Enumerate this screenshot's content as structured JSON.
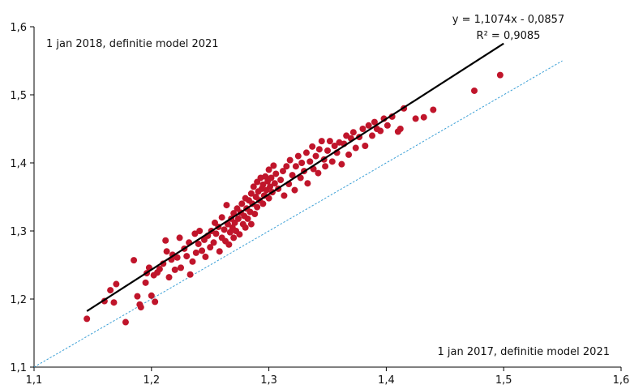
{
  "chart_data": {
    "type": "scatter",
    "title": "",
    "xlabel": "",
    "ylabel": "",
    "xlim": [
      1.1,
      1.6
    ],
    "ylim": [
      1.1,
      1.6
    ],
    "xticks": [
      "1,1",
      "1,2",
      "1,3",
      "1,4",
      "1,5",
      "1,6"
    ],
    "yticks": [
      "1,1",
      "1,2",
      "1,3",
      "1,4",
      "1,5",
      "1,6"
    ],
    "grid": false,
    "legend": "none",
    "annotations": {
      "y_axis_label": "1 jan 2018, definitie model 2021",
      "x_axis_label": "1 jan 2017, definitie model 2021",
      "equation": "y = 1,1074x - 0,0857",
      "r_squared": "R² = 0,9085"
    },
    "trendline": {
      "slope": 1.1074,
      "intercept": -0.0857,
      "x_range": [
        1.145,
        1.5
      ]
    },
    "reference_line": {
      "slope": 1,
      "intercept": 0,
      "x_range": [
        1.1,
        1.55
      ]
    },
    "point_color": "#c0152b",
    "trendline_color": "#000000",
    "reference_color": "#3a9fd6",
    "series": [
      {
        "points": [
          [
            1.145,
            1.171
          ],
          [
            1.16,
            1.197
          ],
          [
            1.165,
            1.213
          ],
          [
            1.168,
            1.195
          ],
          [
            1.17,
            1.222
          ],
          [
            1.178,
            1.166
          ],
          [
            1.185,
            1.257
          ],
          [
            1.188,
            1.204
          ],
          [
            1.19,
            1.192
          ],
          [
            1.191,
            1.188
          ],
          [
            1.195,
            1.224
          ],
          [
            1.196,
            1.238
          ],
          [
            1.198,
            1.246
          ],
          [
            1.2,
            1.205
          ],
          [
            1.202,
            1.235
          ],
          [
            1.203,
            1.196
          ],
          [
            1.205,
            1.239
          ],
          [
            1.207,
            1.244
          ],
          [
            1.21,
            1.252
          ],
          [
            1.212,
            1.286
          ],
          [
            1.213,
            1.27
          ],
          [
            1.215,
            1.232
          ],
          [
            1.217,
            1.258
          ],
          [
            1.218,
            1.265
          ],
          [
            1.22,
            1.243
          ],
          [
            1.222,
            1.261
          ],
          [
            1.224,
            1.29
          ],
          [
            1.225,
            1.246
          ],
          [
            1.228,
            1.274
          ],
          [
            1.23,
            1.263
          ],
          [
            1.232,
            1.283
          ],
          [
            1.233,
            1.236
          ],
          [
            1.235,
            1.255
          ],
          [
            1.237,
            1.296
          ],
          [
            1.238,
            1.268
          ],
          [
            1.24,
            1.281
          ],
          [
            1.241,
            1.3
          ],
          [
            1.243,
            1.271
          ],
          [
            1.245,
            1.287
          ],
          [
            1.246,
            1.262
          ],
          [
            1.248,
            1.293
          ],
          [
            1.25,
            1.276
          ],
          [
            1.251,
            1.3
          ],
          [
            1.253,
            1.283
          ],
          [
            1.254,
            1.312
          ],
          [
            1.255,
            1.296
          ],
          [
            1.257,
            1.306
          ],
          [
            1.258,
            1.27
          ],
          [
            1.26,
            1.29
          ],
          [
            1.26,
            1.32
          ],
          [
            1.262,
            1.302
          ],
          [
            1.263,
            1.285
          ],
          [
            1.264,
            1.338
          ],
          [
            1.265,
            1.31
          ],
          [
            1.266,
            1.28
          ],
          [
            1.267,
            1.298
          ],
          [
            1.268,
            1.318
          ],
          [
            1.269,
            1.305
          ],
          [
            1.27,
            1.29
          ],
          [
            1.27,
            1.326
          ],
          [
            1.271,
            1.312
          ],
          [
            1.272,
            1.3
          ],
          [
            1.273,
            1.333
          ],
          [
            1.274,
            1.318
          ],
          [
            1.275,
            1.295
          ],
          [
            1.276,
            1.327
          ],
          [
            1.277,
            1.34
          ],
          [
            1.278,
            1.31
          ],
          [
            1.279,
            1.322
          ],
          [
            1.28,
            1.305
          ],
          [
            1.28,
            1.348
          ],
          [
            1.281,
            1.333
          ],
          [
            1.282,
            1.318
          ],
          [
            1.283,
            1.345
          ],
          [
            1.284,
            1.328
          ],
          [
            1.285,
            1.31
          ],
          [
            1.285,
            1.355
          ],
          [
            1.286,
            1.34
          ],
          [
            1.287,
            1.365
          ],
          [
            1.288,
            1.325
          ],
          [
            1.289,
            1.35
          ],
          [
            1.29,
            1.335
          ],
          [
            1.29,
            1.372
          ],
          [
            1.291,
            1.358
          ],
          [
            1.292,
            1.345
          ],
          [
            1.293,
            1.378
          ],
          [
            1.294,
            1.362
          ],
          [
            1.295,
            1.34
          ],
          [
            1.295,
            1.368
          ],
          [
            1.296,
            1.352
          ],
          [
            1.297,
            1.38
          ],
          [
            1.298,
            1.36
          ],
          [
            1.299,
            1.373
          ],
          [
            1.3,
            1.348
          ],
          [
            1.3,
            1.39
          ],
          [
            1.301,
            1.365
          ],
          [
            1.302,
            1.378
          ],
          [
            1.303,
            1.357
          ],
          [
            1.304,
            1.396
          ],
          [
            1.305,
            1.37
          ],
          [
            1.306,
            1.384
          ],
          [
            1.308,
            1.362
          ],
          [
            1.31,
            1.375
          ],
          [
            1.312,
            1.388
          ],
          [
            1.313,
            1.352
          ],
          [
            1.315,
            1.395
          ],
          [
            1.317,
            1.369
          ],
          [
            1.318,
            1.404
          ],
          [
            1.32,
            1.382
          ],
          [
            1.322,
            1.36
          ],
          [
            1.323,
            1.395
          ],
          [
            1.325,
            1.41
          ],
          [
            1.327,
            1.378
          ],
          [
            1.328,
            1.4
          ],
          [
            1.33,
            1.388
          ],
          [
            1.332,
            1.415
          ],
          [
            1.333,
            1.37
          ],
          [
            1.335,
            1.402
          ],
          [
            1.337,
            1.424
          ],
          [
            1.338,
            1.391
          ],
          [
            1.34,
            1.41
          ],
          [
            1.342,
            1.385
          ],
          [
            1.343,
            1.42
          ],
          [
            1.345,
            1.432
          ],
          [
            1.347,
            1.405
          ],
          [
            1.348,
            1.395
          ],
          [
            1.35,
            1.418
          ],
          [
            1.352,
            1.432
          ],
          [
            1.354,
            1.402
          ],
          [
            1.356,
            1.425
          ],
          [
            1.358,
            1.415
          ],
          [
            1.36,
            1.43
          ],
          [
            1.362,
            1.398
          ],
          [
            1.364,
            1.428
          ],
          [
            1.366,
            1.44
          ],
          [
            1.368,
            1.412
          ],
          [
            1.37,
            1.436
          ],
          [
            1.372,
            1.445
          ],
          [
            1.374,
            1.422
          ],
          [
            1.377,
            1.438
          ],
          [
            1.38,
            1.45
          ],
          [
            1.382,
            1.425
          ],
          [
            1.385,
            1.455
          ],
          [
            1.388,
            1.44
          ],
          [
            1.39,
            1.46
          ],
          [
            1.392,
            1.45
          ],
          [
            1.395,
            1.447
          ],
          [
            1.398,
            1.465
          ],
          [
            1.401,
            1.455
          ],
          [
            1.405,
            1.468
          ],
          [
            1.41,
            1.446
          ],
          [
            1.412,
            1.45
          ],
          [
            1.415,
            1.48
          ],
          [
            1.425,
            1.465
          ],
          [
            1.432,
            1.467
          ],
          [
            1.44,
            1.478
          ],
          [
            1.475,
            1.506
          ],
          [
            1.497,
            1.529
          ]
        ]
      }
    ]
  }
}
